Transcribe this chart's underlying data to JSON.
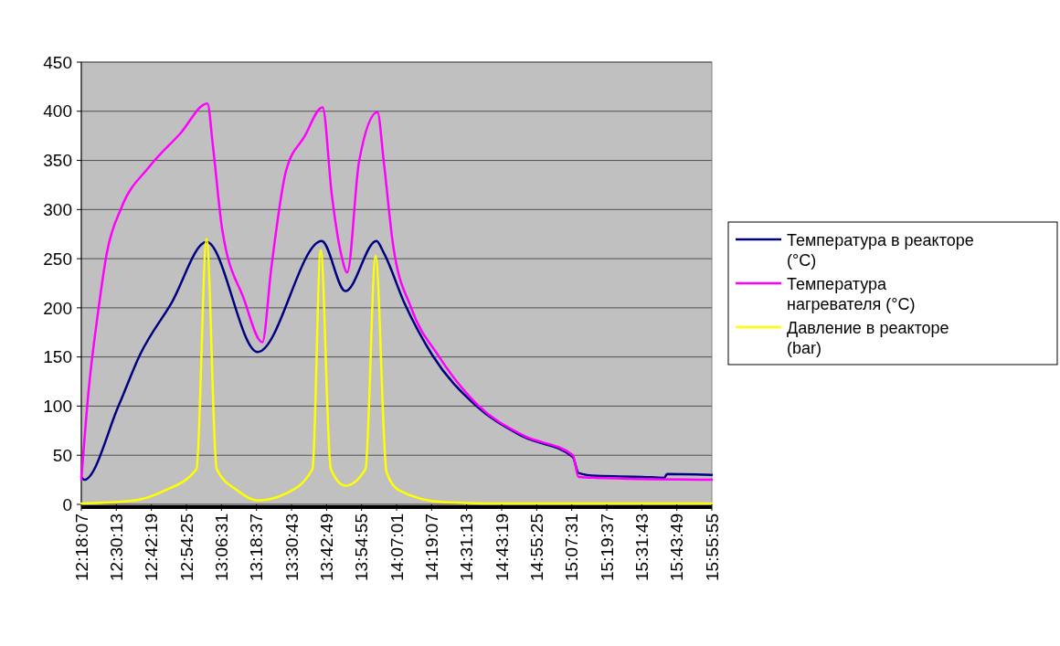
{
  "chart_data": {
    "type": "line",
    "legend": "right",
    "grid": "y",
    "line_style": "solid",
    "marker": "none",
    "xlim": [
      12.30194,
      15.93194
    ],
    "ylim": [
      0,
      450
    ],
    "yticks": [
      0,
      50,
      100,
      150,
      200,
      250,
      300,
      350,
      400,
      450
    ],
    "xticks": [
      {
        "value": 12.30194,
        "label": "12:18:07"
      },
      {
        "value": 12.50361,
        "label": "12:30:13"
      },
      {
        "value": 12.70528,
        "label": "12:42:19"
      },
      {
        "value": 12.90694,
        "label": "12:54:25"
      },
      {
        "value": 13.10861,
        "label": "13:06:31"
      },
      {
        "value": 13.31028,
        "label": "13:18:37"
      },
      {
        "value": 13.51194,
        "label": "13:30:43"
      },
      {
        "value": 13.71361,
        "label": "13:42:49"
      },
      {
        "value": 13.91528,
        "label": "13:54:55"
      },
      {
        "value": 14.11694,
        "label": "14:07:01"
      },
      {
        "value": 14.31861,
        "label": "14:19:07"
      },
      {
        "value": 14.52028,
        "label": "14:31:13"
      },
      {
        "value": 14.72194,
        "label": "14:43:19"
      },
      {
        "value": 14.92361,
        "label": "14:55:25"
      },
      {
        "value": 15.12528,
        "label": "15:07:31"
      },
      {
        "value": 15.32694,
        "label": "15:19:37"
      },
      {
        "value": 15.52861,
        "label": "15:31:43"
      },
      {
        "value": 15.73028,
        "label": "15:43:49"
      },
      {
        "value": 15.93194,
        "label": "15:55:55"
      }
    ],
    "series": [
      {
        "name": "Температура в реакторе (°C)",
        "color": "#000080",
        "x": [
          12.302,
          12.318,
          12.518,
          12.639,
          12.818,
          13.023,
          13.317,
          13.686,
          13.822,
          14.001,
          14.043,
          14.164,
          14.322,
          14.57,
          14.833,
          15.132,
          15.164,
          15.269,
          15.532,
          15.659,
          15.674,
          15.93194
        ],
        "values": [
          28,
          25,
          101,
          152,
          204,
          267,
          155,
          268,
          217,
          268,
          256,
          204,
          152,
          101,
          70,
          48,
          32,
          29,
          28,
          27,
          31,
          30
        ]
      },
      {
        "name": "Температура нагревателя (°C)",
        "color": "#ff00ff",
        "x": [
          12.302,
          12.344,
          12.397,
          12.449,
          12.533,
          12.691,
          12.87,
          13.028,
          13.06,
          13.112,
          13.238,
          13.344,
          13.396,
          13.48,
          13.586,
          13.691,
          13.744,
          13.796,
          13.833,
          13.901,
          14.007,
          14.043,
          14.096,
          14.201,
          14.359,
          14.585,
          14.848,
          15.132,
          15.164,
          15.269,
          15.93194
        ],
        "values": [
          25,
          116,
          194,
          256,
          302,
          343,
          377,
          408,
          364,
          281,
          209,
          165,
          241,
          339,
          374,
          404,
          315,
          256,
          236,
          349,
          399,
          349,
          265,
          200,
          151,
          101,
          70,
          50,
          28,
          27,
          25
        ]
      },
      {
        "name": "Давление в реакторе (bar)",
        "color": "#ffff00",
        "x": [
          12.302,
          12.607,
          12.781,
          12.965,
          13.023,
          13.081,
          13.202,
          13.317,
          13.48,
          13.633,
          13.68,
          13.738,
          13.822,
          13.938,
          13.996,
          14.059,
          14.133,
          14.396,
          14.743,
          15.93194
        ],
        "values": [
          1,
          4,
          14,
          36,
          270,
          36,
          14,
          4,
          11,
          36,
          259,
          36,
          19,
          36,
          253,
          33,
          14,
          2,
          1,
          1
        ]
      }
    ]
  }
}
